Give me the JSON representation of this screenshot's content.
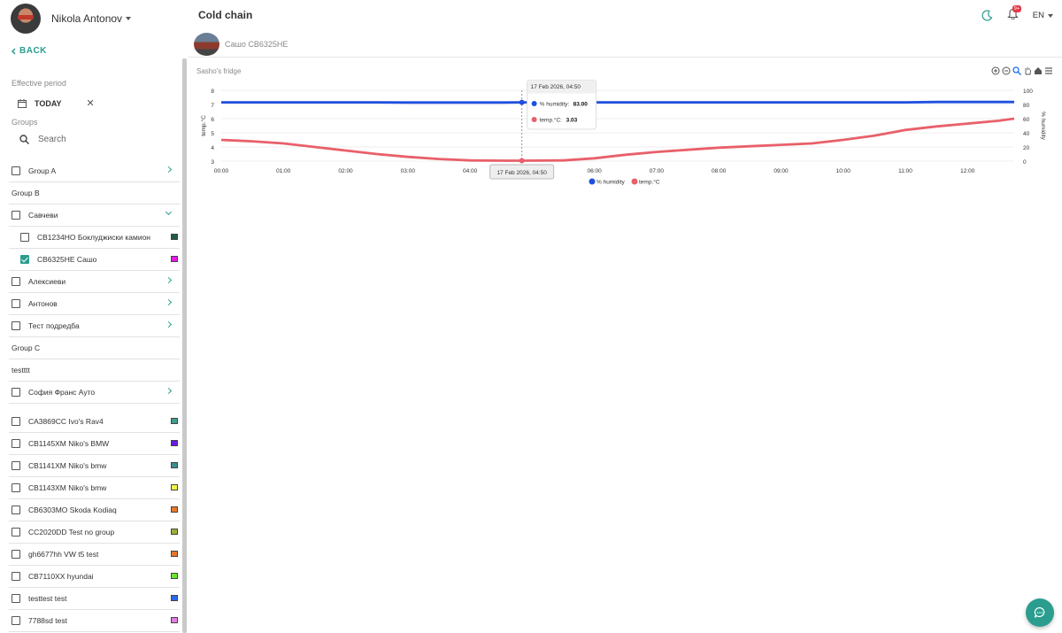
{
  "user": {
    "name": "Nikola Antonov"
  },
  "sidebar": {
    "back_label": "BACK",
    "effective_period_label": "Effective period",
    "period_value": "TODAY",
    "groups_label": "Groups",
    "search_placeholder": "Search",
    "rows": [
      {
        "type": "group",
        "checkbox": true,
        "label": "Group A",
        "chevron": "right"
      },
      {
        "type": "header",
        "label": "Group B"
      },
      {
        "type": "group",
        "checkbox": true,
        "label": "Савчеви",
        "chevron": "down"
      },
      {
        "type": "vehicle",
        "sub": true,
        "checked": false,
        "label": "CB1234HO  Боклуджиски камион",
        "color": "#1f5a4c"
      },
      {
        "type": "vehicle",
        "sub": true,
        "checked": true,
        "label": "CB6325HE  Сашо",
        "color": "#e619e6"
      },
      {
        "type": "group",
        "checkbox": true,
        "label": "Алексиеви",
        "chevron": "right"
      },
      {
        "type": "group",
        "checkbox": true,
        "label": "Антонов",
        "chevron": "right"
      },
      {
        "type": "group",
        "checkbox": true,
        "label": "Тест подредба",
        "chevron": "right"
      },
      {
        "type": "header",
        "label": "Group C"
      },
      {
        "type": "header",
        "label": "testttt"
      },
      {
        "type": "group",
        "checkbox": true,
        "label": "София Франс Ауто",
        "chevron": "right"
      }
    ],
    "vehicles": [
      {
        "label": "CA3869CC  Ivo's Rav4",
        "color": "#3f9e8e"
      },
      {
        "label": "CB1145XM  Niko's BMW",
        "color": "#6a1ae6"
      },
      {
        "label": "CB1141XM  Niko's bmw",
        "color": "#3a8f8f"
      },
      {
        "label": "CB1143XM  Niko's bmw",
        "color": "#f2f24a"
      },
      {
        "label": "CB6303MO  Skoda Kodiaq",
        "color": "#e67a2e"
      },
      {
        "label": "CC2020DD  Test no group",
        "color": "#9ab03a"
      },
      {
        "label": "gh6677hh  VW t5 test",
        "color": "#e6752e"
      },
      {
        "label": "CB7110XX  hyundai",
        "color": "#6ae62e"
      },
      {
        "label": "testtest  test",
        "color": "#2a6ae6"
      },
      {
        "label": "7788sd  test",
        "color": "#e67ae6"
      }
    ]
  },
  "header": {
    "title": "Cold chain",
    "notification_count": "9+",
    "language": "EN",
    "vehicle_name": "Сашо CB6325HE"
  },
  "chart_data": {
    "type": "line",
    "title": "Sasho's fridge",
    "x": [
      "00:00",
      "00:30",
      "01:00",
      "01:30",
      "02:00",
      "02:30",
      "03:00",
      "03:30",
      "04:00",
      "04:30",
      "04:50",
      "05:30",
      "06:00",
      "06:30",
      "07:00",
      "07:30",
      "08:00",
      "08:30",
      "09:00",
      "09:30",
      "10:00",
      "10:30",
      "11:00",
      "11:30",
      "12:00",
      "12:30",
      "12:45"
    ],
    "x_tick_labels": [
      "00:00",
      "01:00",
      "02:00",
      "03:00",
      "04:00",
      "05:00",
      "06:00",
      "07:00",
      "08:00",
      "09:00",
      "10:00",
      "11:00",
      "12:00"
    ],
    "series": [
      {
        "name": "% humidity",
        "axis": "right",
        "color": "#1f4fe0",
        "values": [
          83,
          83,
          83,
          83,
          83,
          83,
          82.7,
          82.7,
          82.7,
          82.8,
          83,
          83,
          83,
          83,
          83,
          83,
          83,
          83,
          83,
          83,
          83,
          83,
          83,
          83.5,
          83.5,
          83.5,
          83.5
        ]
      },
      {
        "name": "temp.°C",
        "axis": "left",
        "color": "#e8606a",
        "values": [
          4.5,
          4.4,
          4.25,
          4.0,
          3.75,
          3.5,
          3.3,
          3.15,
          3.05,
          3.03,
          3.03,
          3.05,
          3.2,
          3.45,
          3.65,
          3.8,
          3.95,
          4.05,
          4.15,
          4.25,
          4.5,
          4.8,
          5.2,
          5.45,
          5.65,
          5.85,
          6.0
        ]
      }
    ],
    "ylabel": "temp.°C",
    "y2label": "% humidity",
    "ylim": [
      3,
      8
    ],
    "y2lim": [
      0,
      100
    ],
    "y_ticks": [
      3,
      4,
      5,
      6,
      7,
      8
    ],
    "y2_ticks": [
      0,
      20,
      40,
      60,
      80,
      100
    ],
    "legend_position": "bottom",
    "tooltip": {
      "title": "17 Feb 2026, 04:50",
      "humidity_label": "% humidity:",
      "humidity_value": "83.00",
      "temp_label": "temp.°C:",
      "temp_value": "3.03",
      "x_label": "17 Feb 2026, 04:50",
      "x_hours": 4.833
    }
  },
  "colors": {
    "accent": "#2a9d8f",
    "badge": "#e63946"
  }
}
